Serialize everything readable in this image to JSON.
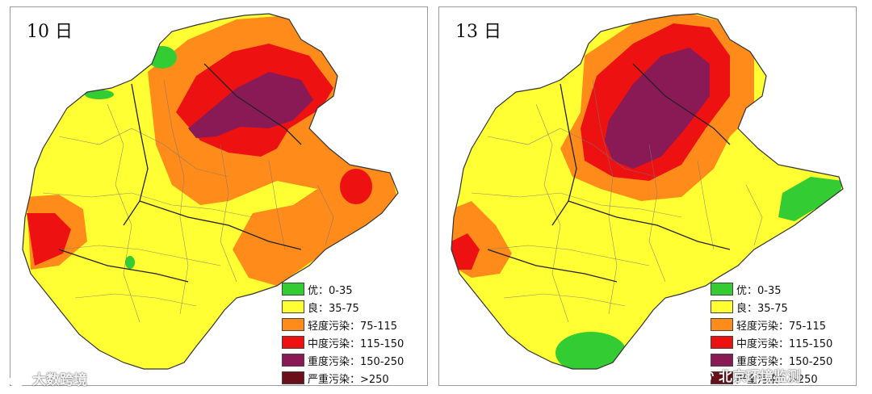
{
  "panels": [
    {
      "title": "10 日"
    },
    {
      "title": "13 日"
    }
  ],
  "legend": [
    {
      "label": "优：0-35",
      "color": "#33cc33"
    },
    {
      "label": "良：35-75",
      "color": "#ffff33"
    },
    {
      "label": "轻度污染：75-115",
      "color": "#ff8c1a"
    },
    {
      "label": "中度污染：115-150",
      "color": "#ee1111"
    },
    {
      "label": "重度污染：150-250",
      "color": "#8a1a55"
    },
    {
      "label": "严重污染：>250",
      "color": "#6b0f1a"
    }
  ],
  "watermarks": {
    "left": "大数跨境",
    "right": "北京环境监测"
  }
}
